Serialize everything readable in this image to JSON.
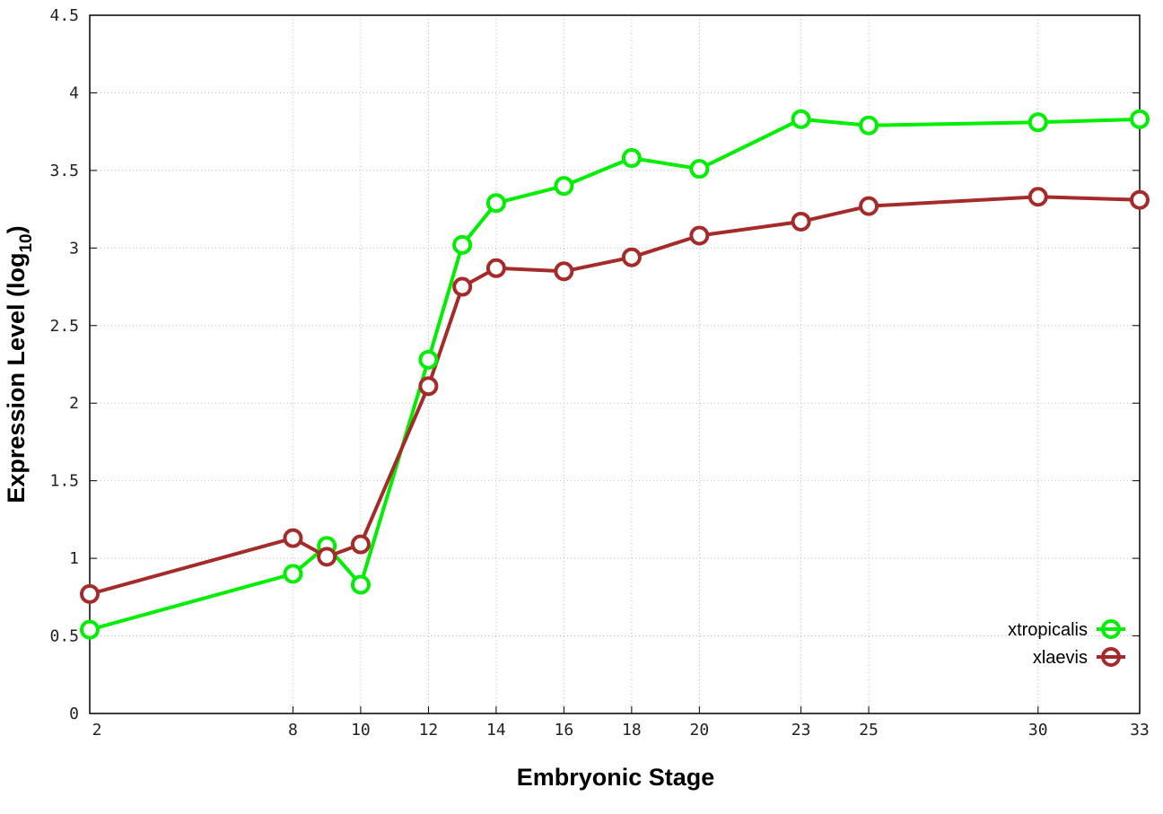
{
  "chart_data": {
    "type": "line",
    "title": "",
    "xlabel": "Embryonic Stage",
    "ylabel": "Expression Level (log",
    "ylabel_sub": "10",
    "ylabel_close": ")",
    "xlim": [
      2,
      33
    ],
    "ylim": [
      0,
      4.5
    ],
    "x_ticks": [
      2,
      8,
      10,
      12,
      14,
      16,
      18,
      20,
      23,
      25,
      30,
      33
    ],
    "y_ticks": [
      "0",
      "0.5",
      "1",
      "1.5",
      "2",
      "2.5",
      "3",
      "3.5",
      "4",
      "4.5"
    ],
    "grid": true,
    "legend_position": "bottom-right",
    "x": [
      2,
      8,
      9,
      10,
      12,
      13,
      14,
      16,
      18,
      20,
      23,
      25,
      30,
      33
    ],
    "series": [
      {
        "name": "xtropicalis",
        "color": "#00ee00",
        "values": [
          0.54,
          0.9,
          1.08,
          0.83,
          2.28,
          3.02,
          3.29,
          3.4,
          3.58,
          3.51,
          3.83,
          3.79,
          3.81,
          3.83
        ]
      },
      {
        "name": "xlaevis",
        "color": "#a52a2a",
        "values": [
          0.77,
          1.13,
          1.01,
          1.09,
          2.11,
          2.75,
          2.87,
          2.85,
          2.94,
          3.08,
          3.17,
          3.27,
          3.33,
          3.31
        ]
      }
    ]
  }
}
